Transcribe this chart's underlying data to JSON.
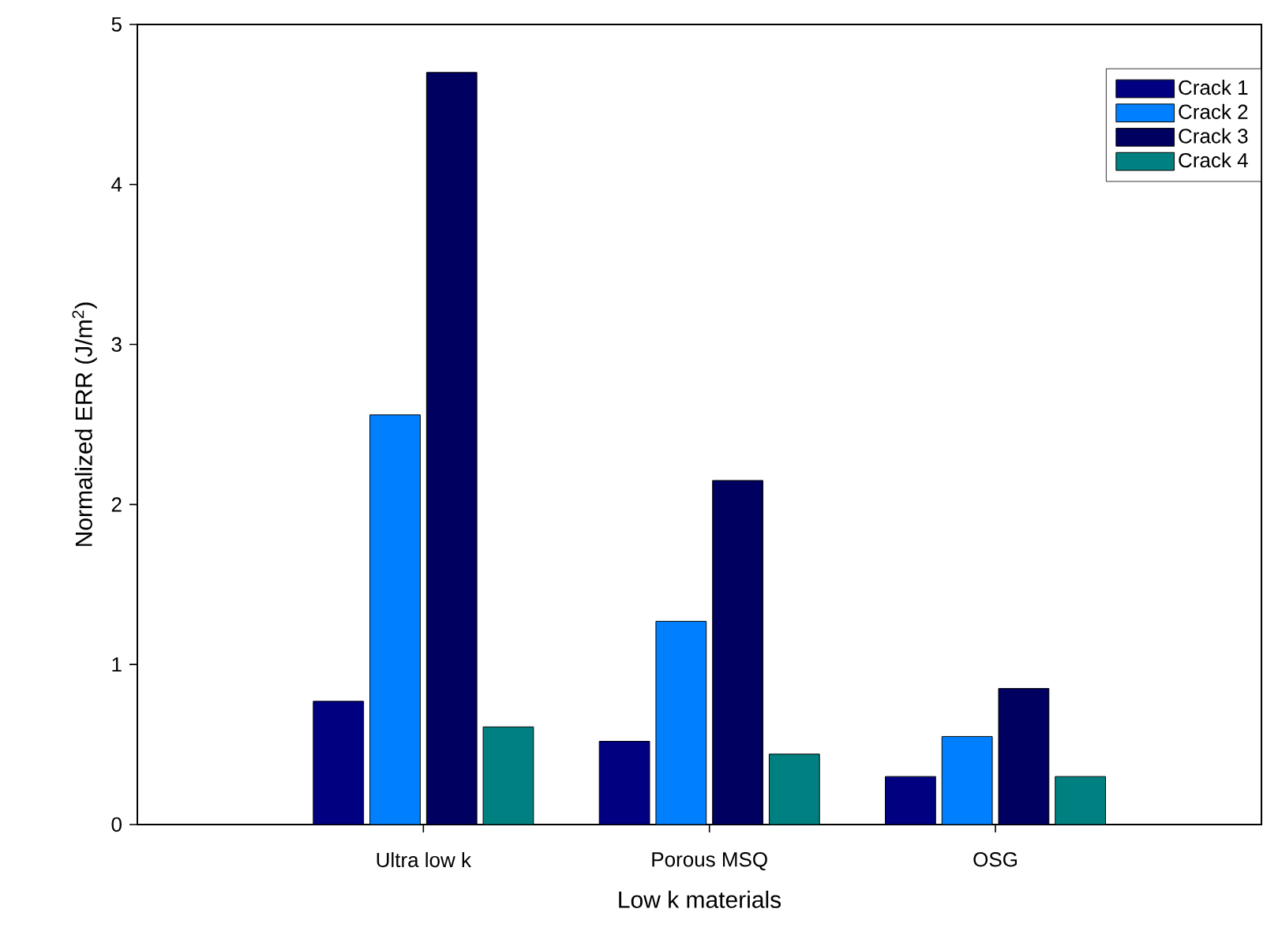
{
  "chart_data": {
    "type": "bar",
    "xlabel": "Low k materials",
    "ylabel": "Normalized ERR (J/m$^{2}$)",
    "categories": [
      "Ultra low k",
      "Porous MSQ",
      "OSG"
    ],
    "series": [
      {
        "name": "Crack 1",
        "color": "#000080",
        "values": [
          0.77,
          0.52,
          0.3
        ]
      },
      {
        "name": "Crack 2",
        "color": "#0080ff",
        "values": [
          2.56,
          1.27,
          0.55
        ]
      },
      {
        "name": "Crack 3",
        "color": "#000060",
        "values": [
          4.7,
          2.15,
          0.85
        ]
      },
      {
        "name": "Crack 4",
        "color": "#008080",
        "values": [
          0.61,
          0.44,
          0.3
        ]
      }
    ],
    "ylim": [
      0,
      5
    ],
    "yticks": [
      0,
      1,
      2,
      3,
      4,
      5
    ],
    "grid": false,
    "legend": "top right"
  }
}
